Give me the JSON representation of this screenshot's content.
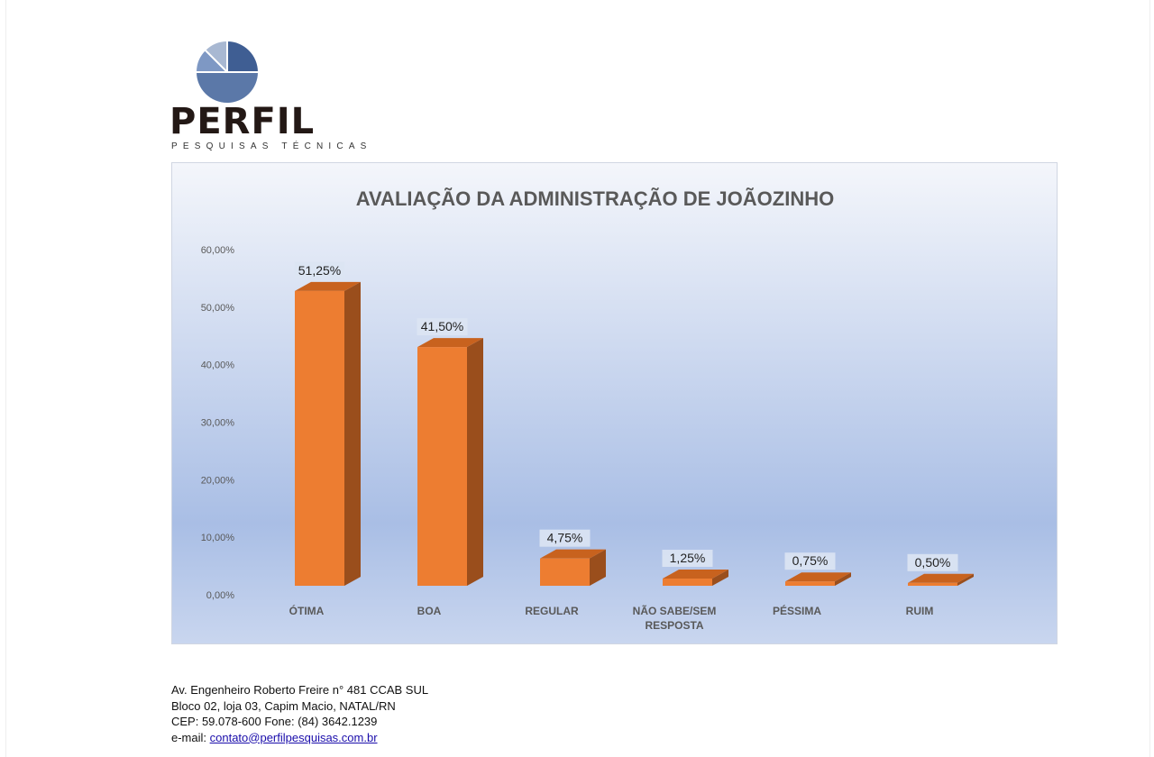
{
  "logo": {
    "name": "PERFIL",
    "tagline": "PESQUISAS TÉCNICAS"
  },
  "colors": {
    "bar_front": "#ED7D31",
    "bar_side": "#9A4E1C",
    "bar_top": "#C8621E",
    "bg_top": "#F4F6FB",
    "bg_bottom": "#A9BEE5",
    "title": "#595959",
    "axis_text": "#595959"
  },
  "chart_data": {
    "type": "bar",
    "title": "AVALIAÇÃO DA ADMINISTRAÇÃO DE JOÃOZINHO",
    "categories": [
      "ÓTIMA",
      "BOA",
      "REGULAR",
      "NÃO SABE/SEM RESPOSTA",
      "PÉSSIMA",
      "RUIM"
    ],
    "category_lines": [
      [
        "ÓTIMA"
      ],
      [
        "BOA"
      ],
      [
        "REGULAR"
      ],
      [
        "NÃO SABE/SEM",
        "RESPOSTA"
      ],
      [
        "PÉSSIMA"
      ],
      [
        "RUIM"
      ]
    ],
    "values": [
      51.25,
      41.5,
      4.75,
      1.25,
      0.75,
      0.5
    ],
    "data_labels": [
      "51,25%",
      "41,50%",
      "4,75%",
      "1,25%",
      "0,75%",
      "0,50%"
    ],
    "yticks": [
      "0,00%",
      "10,00%",
      "20,00%",
      "30,00%",
      "40,00%",
      "50,00%",
      "60,00%"
    ],
    "ylim": [
      0,
      60
    ],
    "xlabel": "",
    "ylabel": "",
    "grid": false,
    "legend": "none"
  },
  "footer": {
    "line1": "Av. Engenheiro Roberto Freire n° 481 CCAB SUL",
    "line2": "Bloco 02, loja 03, Capim Macio, NATAL/RN",
    "line3": "CEP: 59.078-600 Fone: (84) 3642.1239",
    "email_label": "e-mail: ",
    "email": "contato@perfilpesquisas.com.br"
  }
}
